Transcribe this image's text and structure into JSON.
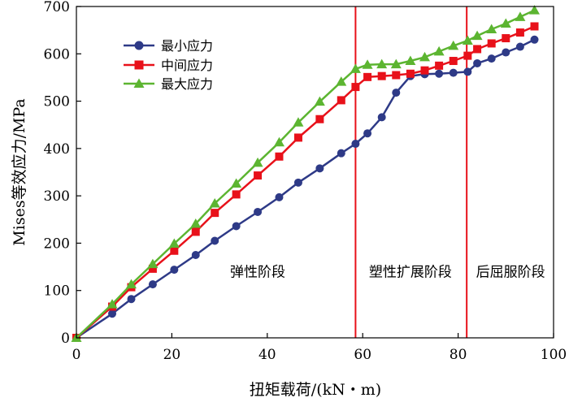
{
  "chart_data": {
    "type": "line",
    "xlabel": "扭矩载荷/(kN・m)",
    "ylabel": "Mises等效应力/MPa",
    "xlim": [
      0,
      100
    ],
    "ylim": [
      0,
      700
    ],
    "x_ticks": [
      "0",
      "20",
      "40",
      "60",
      "80",
      "100"
    ],
    "y_ticks": [
      "0",
      "100",
      "200",
      "300",
      "400",
      "500",
      "600",
      "700"
    ],
    "grid": false,
    "legend_position": "top-left",
    "vertical_lines": [
      58.5,
      81.8
    ],
    "annotations": [
      {
        "text": "弹性阶段",
        "x": 38,
        "y": 140
      },
      {
        "text": "塑性扩展阶段",
        "x": 70,
        "y": 140
      },
      {
        "text": "后屈服阶段",
        "x": 91,
        "y": 140
      }
    ],
    "series": [
      {
        "name": "最小应力",
        "color": "#2e3a87",
        "marker": "circle",
        "x": [
          0,
          7.5,
          11.5,
          16,
          20.5,
          25,
          29,
          33.5,
          38,
          42.5,
          46.5,
          51,
          55.5,
          58.5,
          61,
          64,
          67,
          70,
          73,
          76,
          79,
          82,
          84,
          87,
          90,
          93,
          96
        ],
        "y": [
          0,
          51,
          82,
          113,
          144,
          175,
          205,
          236,
          266,
          297,
          328,
          358,
          390,
          410,
          432,
          466,
          518,
          553,
          557,
          558,
          560,
          562,
          580,
          590,
          603,
          615,
          630
        ]
      },
      {
        "name": "中间应力",
        "color": "#e8111a",
        "marker": "square",
        "x": [
          0,
          7.5,
          11.5,
          16,
          20.5,
          25,
          29,
          33.5,
          38,
          42.5,
          46.5,
          51,
          55.5,
          58.5,
          61,
          64,
          67,
          70,
          73,
          76,
          79,
          82,
          84,
          87,
          90,
          93,
          96
        ],
        "y": [
          0,
          66,
          107,
          146,
          184,
          224,
          264,
          303,
          343,
          383,
          423,
          462,
          502,
          530,
          551,
          553,
          555,
          558,
          565,
          575,
          585,
          596,
          610,
          622,
          633,
          645,
          658
        ]
      },
      {
        "name": "最大应力",
        "color": "#5cb531",
        "marker": "triangle",
        "x": [
          0,
          7.5,
          11.5,
          16,
          20.5,
          25,
          29,
          33.5,
          38,
          42.5,
          46.5,
          51,
          55.5,
          58.5,
          61,
          64,
          67,
          70,
          73,
          76,
          79,
          82,
          84,
          87,
          90,
          93,
          96
        ],
        "y": [
          0,
          71,
          113,
          156,
          199,
          241,
          284,
          326,
          370,
          413,
          455,
          499,
          541,
          568,
          577,
          578,
          578,
          585,
          593,
          605,
          617,
          628,
          638,
          652,
          664,
          678,
          692
        ]
      }
    ]
  }
}
